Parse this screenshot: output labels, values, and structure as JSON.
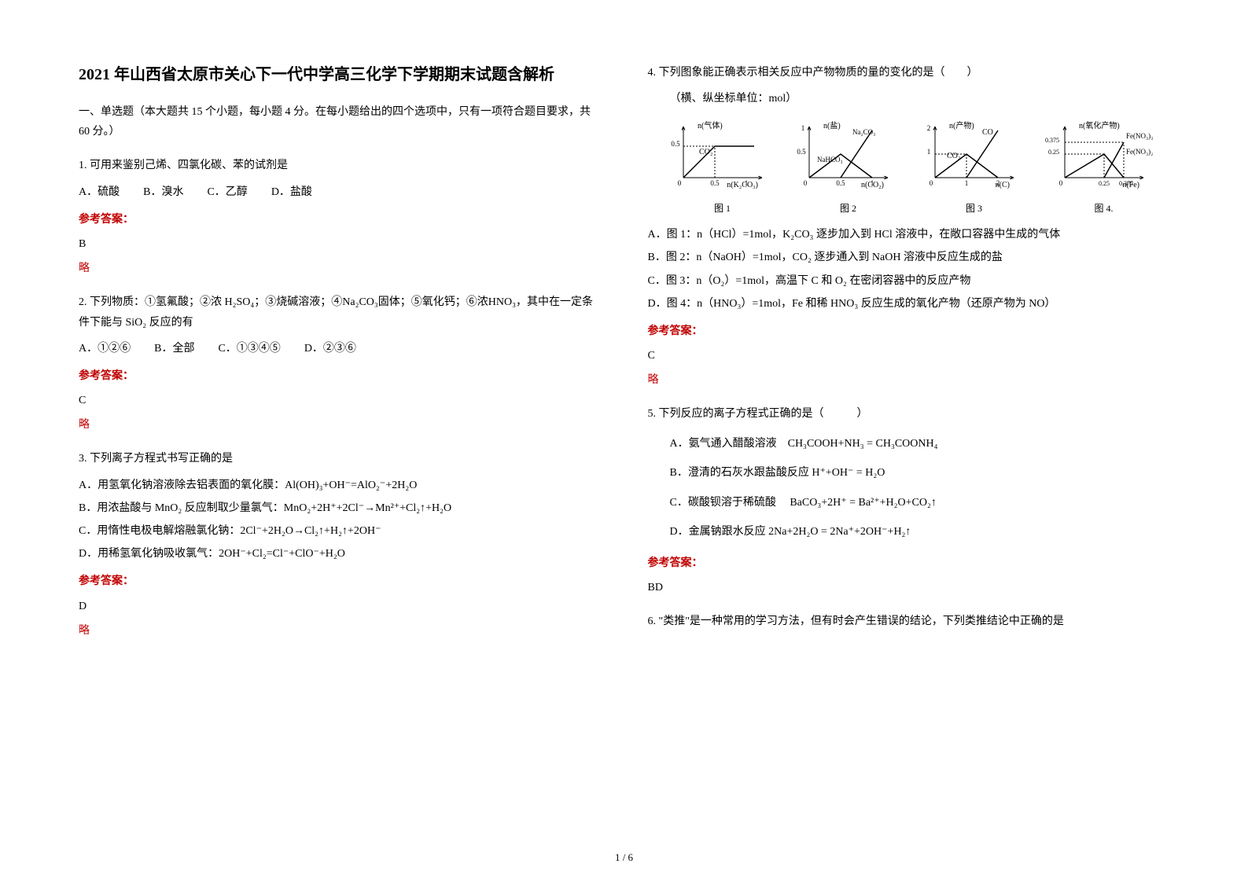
{
  "title": "2021 年山西省太原市关心下一代中学高三化学下学期期末试题含解析",
  "section_intro": "一、单选题（本大题共 15 个小题，每小题 4 分。在每小题给出的四个选项中，只有一项符合题目要求，共 60 分。）",
  "footer": "1 / 6",
  "q1": {
    "text": "1. 可用来鉴别己烯、四氯化碳、苯的试剂是",
    "optA": "A．硫酸",
    "optB": "B．溴水",
    "optC": "C．乙醇",
    "optD": "D．盐酸",
    "answer_label": "参考答案：",
    "answer": "B",
    "omit": "略"
  },
  "q2": {
    "text": "2. 下列物质：①氢氟酸；②浓 H₂SO₄；③烧碱溶液；④Na₂CO₃固体；⑤氧化钙；⑥浓HNO₃，其中在一定条件下能与 SiO₂ 反应的有",
    "optA": "A．①②⑥",
    "optB": "B．全部",
    "optC": "C．①③④⑤",
    "optD": "D．②③⑥",
    "answer_label": "参考答案：",
    "answer": "C",
    "omit": "略"
  },
  "q3": {
    "text": "3. 下列离子方程式书写正确的是",
    "optA": "A．用氢氧化钠溶液除去铝表面的氧化膜：Al(OH)₃+OH⁻=AlO₂⁻+2H₂O",
    "optB": "B．用浓盐酸与 MnO₂ 反应制取少量氯气：MnO₂+2H⁺+2Cl⁻→Mn²⁺+Cl₂↑+H₂O",
    "optC": "C．用惰性电极电解熔融氯化钠：2Cl⁻+2H₂O→Cl₂↑+H₂↑+2OH⁻",
    "optD": "D．用稀氢氧化钠吸收氯气：2OH⁻+Cl₂=Cl⁻+ClO⁻+H₂O",
    "answer_label": "参考答案：",
    "answer": "D",
    "omit": "略"
  },
  "q4": {
    "text": "4. 下列图象能正确表示相关反应中产物物质的量的变化的是（　　）",
    "axis_note": "（横、纵坐标单位：mol）",
    "optA": "A．图 1：n（HCl）=1mol，K₂CO₃ 逐步加入到 HCl 溶液中，在敞口容器中生成的气体",
    "optB": "B．图 2：n（NaOH）=1mol，CO₂ 逐步通入到 NaOH 溶液中反应生成的盐",
    "optC": "C．图 3：n（O₂）=1mol，高温下 C 和 O₂ 在密闭容器中的反应产物",
    "optD": "D．图 4：n（HNO₃）=1mol，Fe 和稀 HNO₃ 反应生成的氧化产物（还原产物为 NO）",
    "answer_label": "参考答案：",
    "answer": "C",
    "omit": "略",
    "charts": {
      "common": {
        "axis_color": "#000000",
        "line_color": "#000000",
        "label_fontsize": 10,
        "tick_fontsize": 9,
        "width": 150,
        "height": 100
      },
      "chart1": {
        "ylabel": "n(气体)",
        "xlabel": "n(K₂CO₃)",
        "caption": "图 1",
        "xticks": [
          "0",
          "0.5",
          "1"
        ],
        "yticks": [
          "0.5"
        ],
        "line_label": "CO₂",
        "segments": [
          [
            0,
            0,
            0.5,
            0.5
          ],
          [
            0.5,
            0.5,
            1,
            0.5
          ]
        ]
      },
      "chart2": {
        "ylabel": "n(盐)",
        "xlabel": "n(CO₂)",
        "caption": "图 2",
        "xticks": [
          "0",
          "0.5",
          "1"
        ],
        "yticks": [
          "0.5",
          "1"
        ],
        "labels": [
          "Na₂CO₃",
          "NaHCO₃"
        ],
        "lines": {
          "na2co3": [
            [
              0,
              0,
              0.5,
              0.5
            ],
            [
              0.5,
              0.5,
              1,
              0
            ]
          ],
          "nahco3": [
            [
              0.5,
              0,
              1,
              1
            ]
          ]
        }
      },
      "chart3": {
        "ylabel": "n(产物)",
        "xlabel": "n(C)",
        "caption": "图 3",
        "xticks": [
          "0",
          "1",
          "2"
        ],
        "yticks": [
          "1",
          "2"
        ],
        "labels": [
          "CO",
          "CO₂"
        ],
        "lines": {
          "co2": [
            [
              0,
              0,
              1,
              1
            ],
            [
              1,
              1,
              2,
              0
            ]
          ],
          "co": [
            [
              1,
              0,
              2,
              2
            ]
          ]
        }
      },
      "chart4": {
        "ylabel": "n(氧化产物)",
        "xlabel": "n(Fe)",
        "caption": "图 4.",
        "xticks": [
          "0",
          "0.25",
          "0.375"
        ],
        "yticks": [
          "0.25",
          "0.375"
        ],
        "labels": [
          "Fe(NO₃)₃",
          "Fe(NO₃)₂"
        ],
        "lines": {
          "fe3": [
            [
              0,
              0,
              0.25,
              0.25
            ],
            [
              0.25,
              0.25,
              0.375,
              0
            ]
          ],
          "fe2": [
            [
              0.25,
              0,
              0.375,
              0.375
            ]
          ]
        }
      }
    }
  },
  "q5": {
    "text": "5. 下列反应的离子方程式正确的是（　　　）",
    "optA": "A．氨气通入醋酸溶液　CH₃COOH+NH₃ = CH₃COONH₄",
    "optB": "B．澄清的石灰水跟盐酸反应 H⁺+OH⁻ = H₂O",
    "optC": "C．碳酸钡溶于稀硫酸　 BaCO₃+2H⁺ = Ba²⁺+H₂O+CO₂↑",
    "optD": "D．金属钠跟水反应 2Na+2H₂O = 2Na⁺+2OH⁻+H₂↑",
    "answer_label": "参考答案：",
    "answer": "BD"
  },
  "q6": {
    "text": "6. \"类推\"是一种常用的学习方法，但有时会产生错误的结论，下列类推结论中正确的是"
  }
}
